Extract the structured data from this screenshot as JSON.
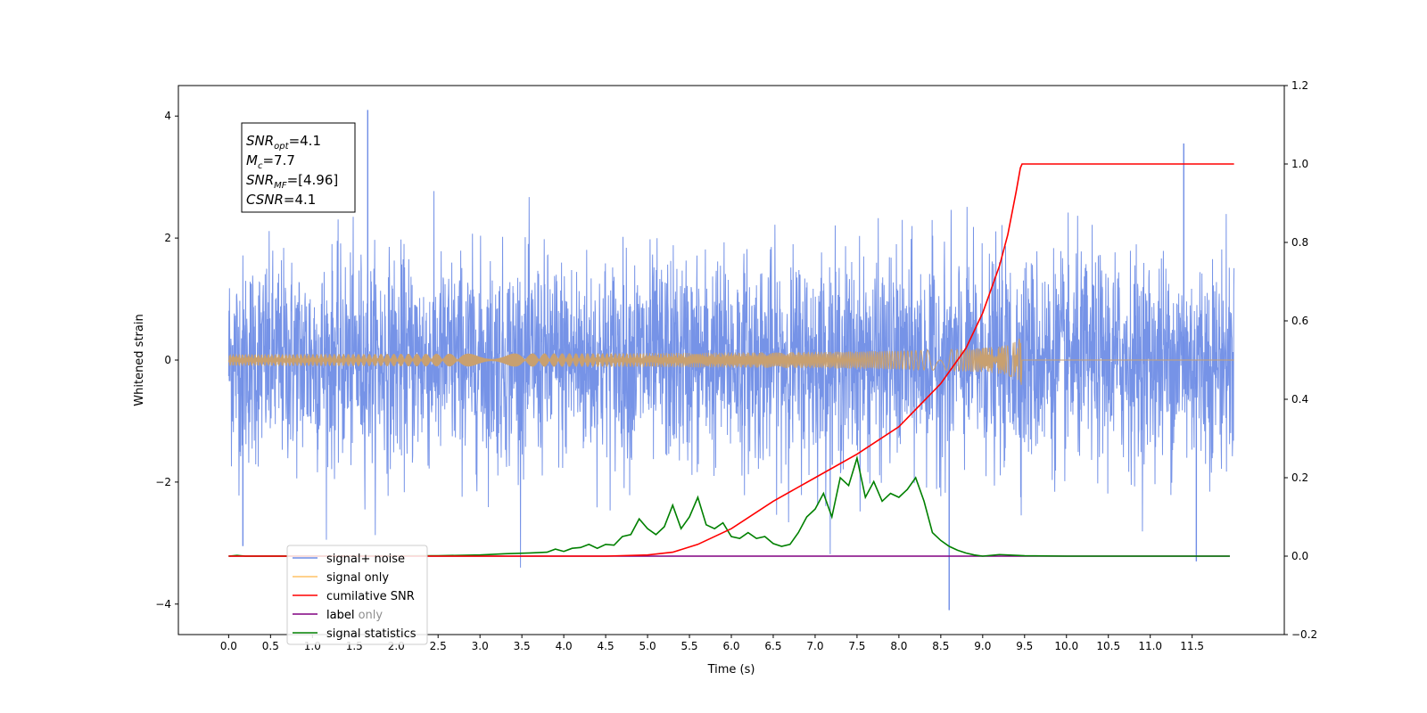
{
  "chart_data": {
    "type": "line",
    "xlabel": "Time (s)",
    "ylabel": "Whitened strain",
    "xlim": [
      -0.6,
      12.6
    ],
    "ylim": [
      -4.5,
      4.5
    ],
    "y2lim": [
      -0.2,
      1.2
    ],
    "x_ticks": [
      "0.0",
      "0.5",
      "1.0",
      "1.5",
      "2.0",
      "2.5",
      "3.0",
      "3.5",
      "4.0",
      "4.5",
      "5.0",
      "5.5",
      "6.0",
      "6.5",
      "7.0",
      "7.5",
      "8.0",
      "8.5",
      "9.0",
      "9.5",
      "10.0",
      "10.5",
      "11.0",
      "11.5"
    ],
    "y_ticks": [
      "4",
      "2",
      "0",
      "−2",
      "−4"
    ],
    "y2_ticks": [
      "1.2",
      "1.0",
      "0.8",
      "0.6",
      "0.4",
      "0.2",
      "0.0",
      "−0.2"
    ],
    "annotation": {
      "lines": [
        {
          "main": "SNR",
          "sub": "opt",
          "rest": "=4.1"
        },
        {
          "main": "M",
          "sub": "c",
          "rest": "=7.7"
        },
        {
          "main": "SNR",
          "sub": "MF",
          "rest": "=[4.96]"
        },
        {
          "main": "CSNR",
          "sub": "",
          "rest": "=4.1"
        }
      ]
    },
    "legend_position": "lower-left",
    "legend": [
      {
        "label": "signal+ noise",
        "color": "#6f8de6"
      },
      {
        "label": "signal only",
        "color": "#ffc266"
      },
      {
        "label": "cumilative SNR",
        "color": "#ff0000"
      },
      {
        "label": "label",
        "color": "#800080"
      },
      {
        "label": "signal statistics",
        "color": "#008000"
      }
    ],
    "hidden_legend_text": "label only",
    "series": [
      {
        "name": "signal+ noise",
        "axis": "left",
        "color": "#6f8de6",
        "x_range": [
          0.0,
          12.0
        ],
        "y_envelope": [
          -2.2,
          2.2
        ],
        "y_extremes": [
          -4.1,
          4.1
        ]
      },
      {
        "name": "signal only",
        "axis": "left",
        "color": "#c8a070",
        "x_range": [
          0.0,
          12.0
        ],
        "chirp_end": 9.47,
        "peak_amplitude": 0.45
      },
      {
        "name": "cumilative SNR",
        "axis": "right",
        "color": "#ff0000",
        "x": [
          0.0,
          4.5,
          5.0,
          5.3,
          5.6,
          6.0,
          6.5,
          7.0,
          7.5,
          8.0,
          8.5,
          8.8,
          9.0,
          9.2,
          9.3,
          9.4,
          9.45,
          9.47,
          12.0
        ],
        "y": [
          0.0,
          0.0,
          0.003,
          0.01,
          0.03,
          0.07,
          0.14,
          0.2,
          0.26,
          0.33,
          0.44,
          0.53,
          0.62,
          0.74,
          0.82,
          0.93,
          0.99,
          1.0,
          1.0
        ]
      },
      {
        "name": "label",
        "axis": "right",
        "color": "#800080",
        "x": [
          0.0,
          11.95
        ],
        "y": [
          0.0,
          0.0
        ]
      },
      {
        "name": "signal statistics",
        "axis": "right",
        "color": "#008000",
        "x": [
          0.0,
          0.1,
          0.2,
          2.5,
          3.0,
          3.3,
          3.6,
          3.8,
          3.9,
          4.0,
          4.1,
          4.2,
          4.3,
          4.4,
          4.5,
          4.6,
          4.7,
          4.8,
          4.9,
          5.0,
          5.1,
          5.2,
          5.3,
          5.4,
          5.5,
          5.6,
          5.7,
          5.8,
          5.9,
          6.0,
          6.1,
          6.2,
          6.3,
          6.4,
          6.5,
          6.6,
          6.7,
          6.8,
          6.9,
          7.0,
          7.1,
          7.2,
          7.3,
          7.4,
          7.5,
          7.6,
          7.7,
          7.8,
          7.9,
          8.0,
          8.1,
          8.2,
          8.3,
          8.4,
          8.5,
          8.6,
          8.7,
          8.8,
          8.9,
          9.0,
          9.1,
          9.2,
          9.5,
          10.0,
          11.95
        ],
        "y": [
          0.0,
          0.002,
          0.0,
          0.001,
          0.003,
          0.006,
          0.008,
          0.01,
          0.018,
          0.012,
          0.02,
          0.022,
          0.03,
          0.02,
          0.03,
          0.028,
          0.05,
          0.055,
          0.095,
          0.07,
          0.055,
          0.075,
          0.13,
          0.07,
          0.1,
          0.15,
          0.08,
          0.07,
          0.085,
          0.05,
          0.045,
          0.06,
          0.045,
          0.05,
          0.032,
          0.025,
          0.03,
          0.06,
          0.1,
          0.12,
          0.16,
          0.1,
          0.2,
          0.18,
          0.25,
          0.15,
          0.19,
          0.14,
          0.16,
          0.15,
          0.17,
          0.2,
          0.14,
          0.06,
          0.04,
          0.025,
          0.015,
          0.008,
          0.003,
          0.0,
          0.002,
          0.004,
          0.001,
          0.0,
          0.0
        ]
      }
    ]
  }
}
